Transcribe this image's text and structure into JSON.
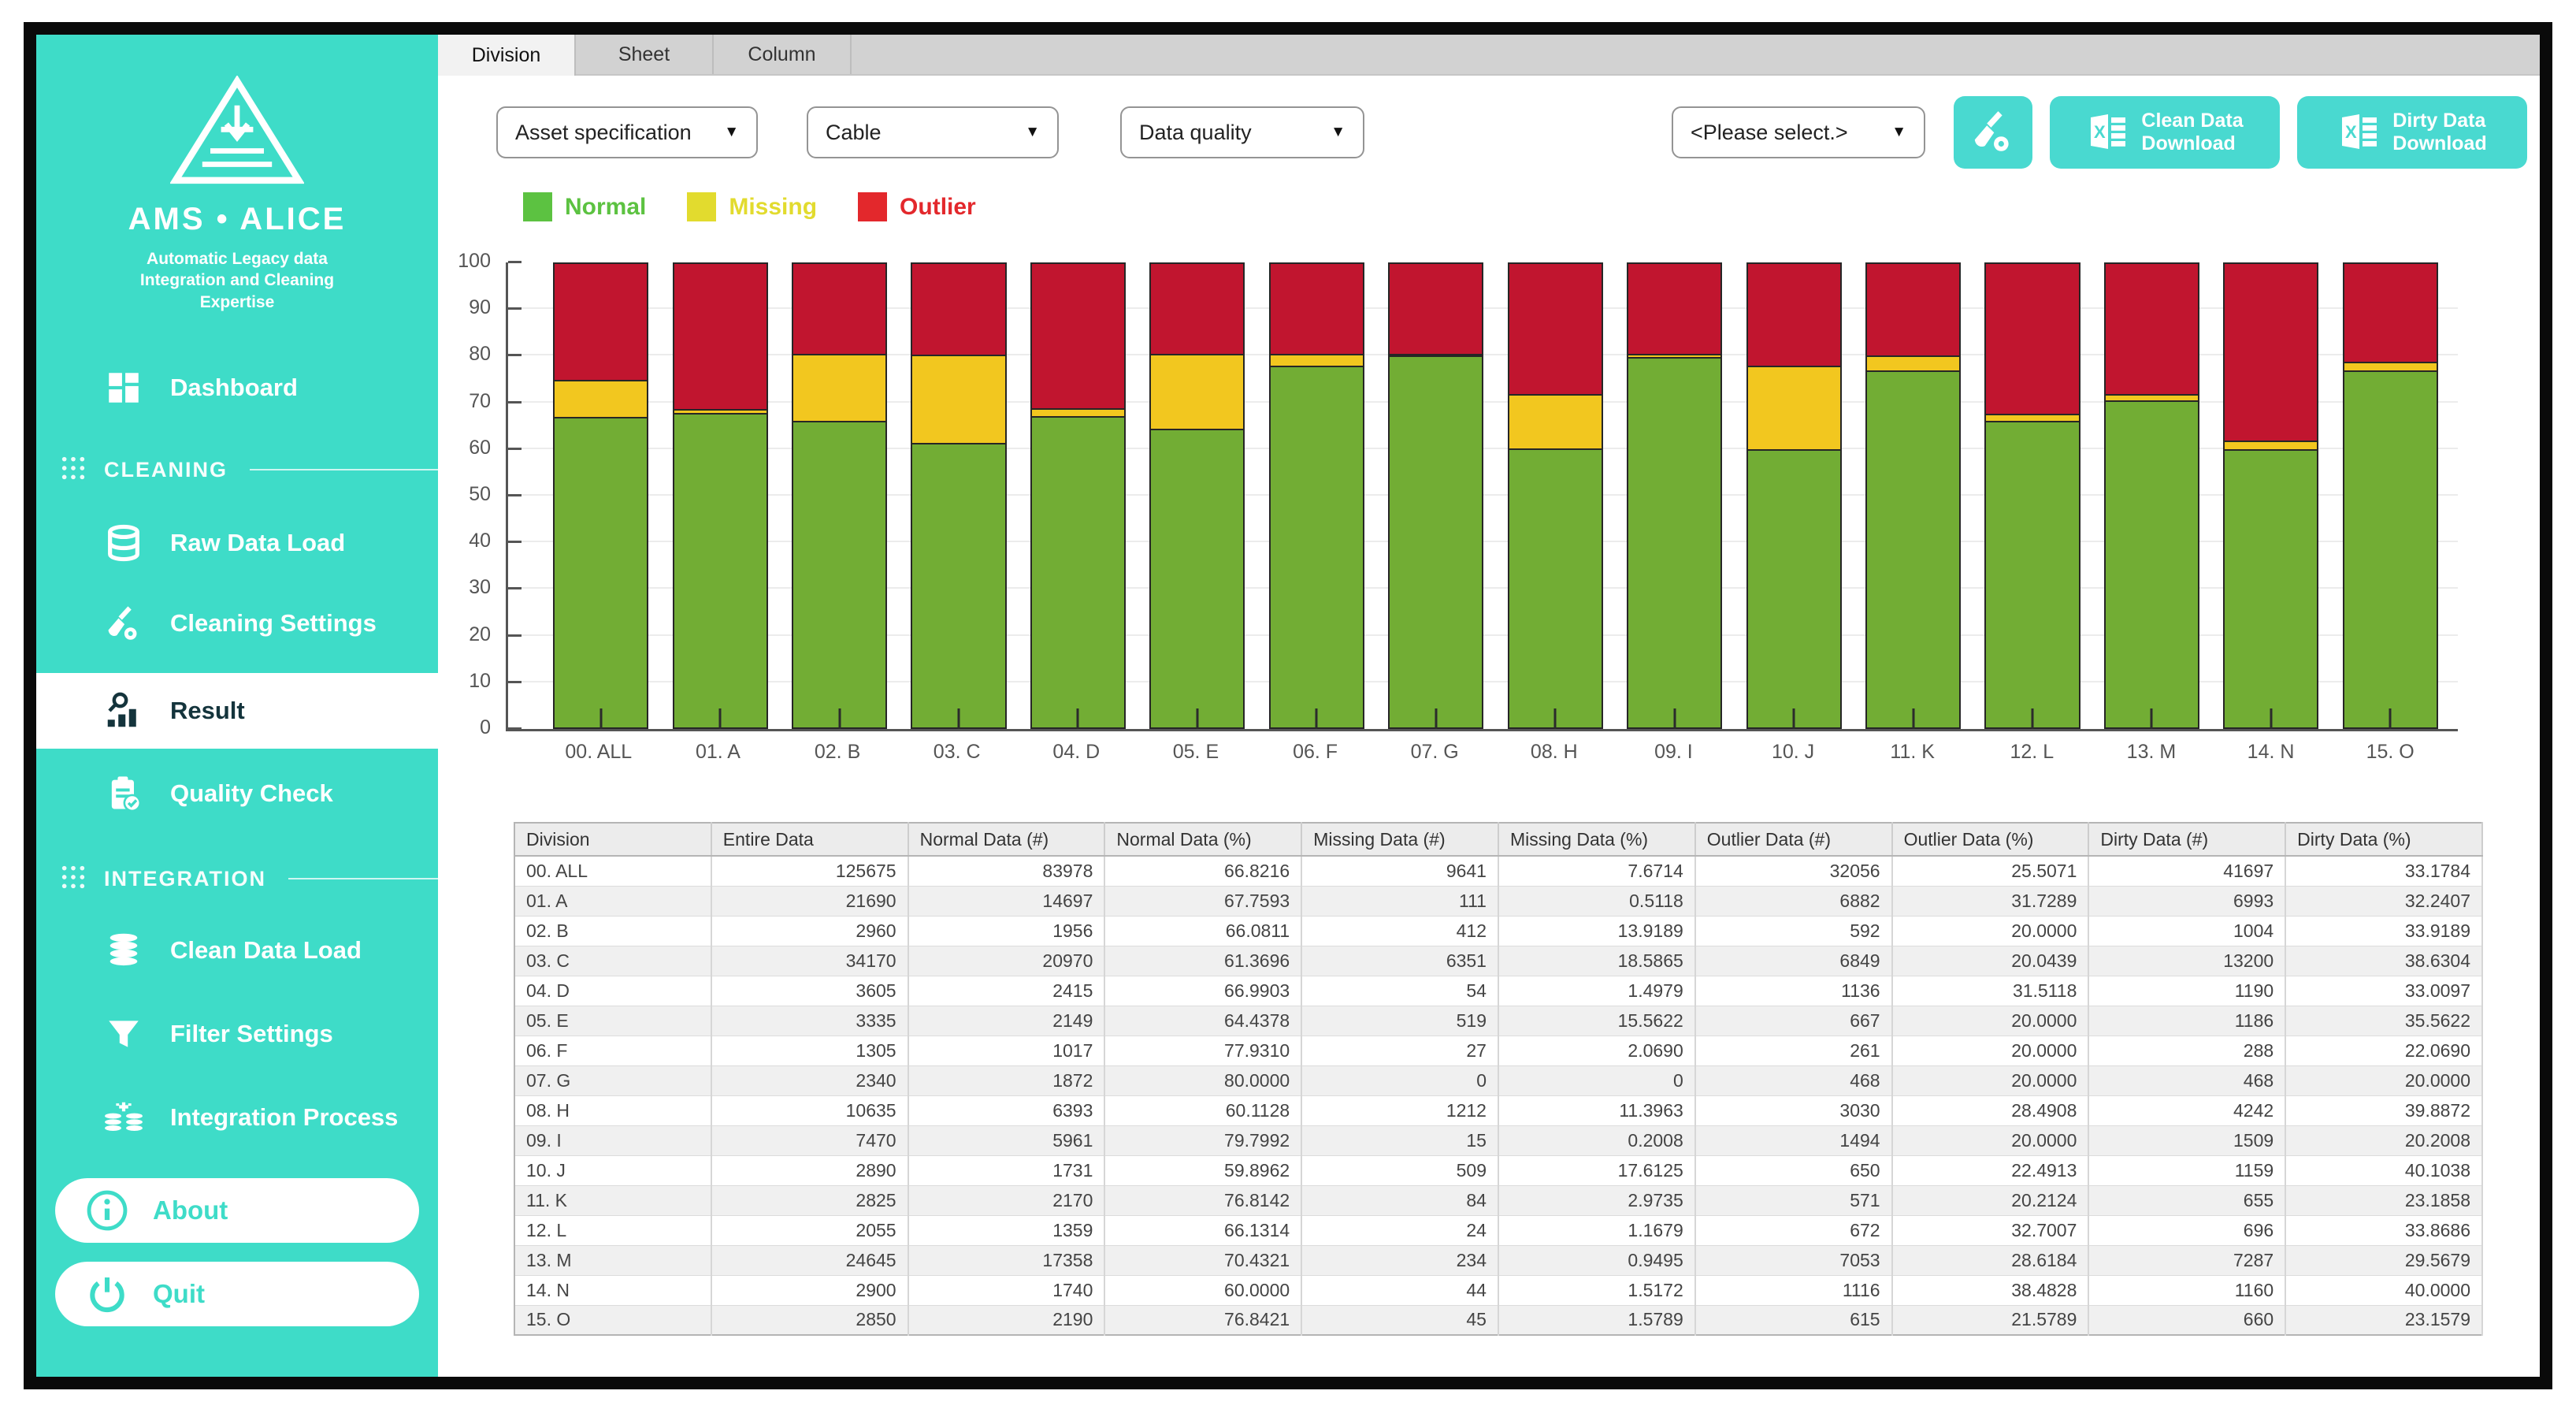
{
  "tabs": [
    {
      "label": "Division",
      "active": true
    },
    {
      "label": "Sheet",
      "active": false
    },
    {
      "label": "Column",
      "active": false
    }
  ],
  "sidebar": {
    "brand": {
      "title": "AMS • ALICE",
      "tagline1": "Automatic Legacy data",
      "tagline2": "Integration and Cleaning",
      "tagline3": "Expertise"
    },
    "items": {
      "dashboard": "Dashboard",
      "cleaning_section": "CLEANING",
      "raw_data_load": "Raw Data Load",
      "cleaning_settings": "Cleaning Settings",
      "result": "Result",
      "quality_check": "Quality Check",
      "integration_section": "INTEGRATION",
      "clean_data_load": "Clean Data Load",
      "filter_settings": "Filter Settings",
      "integration_process": "Integration Process",
      "about": "About",
      "quit": "Quit"
    }
  },
  "controls": {
    "dropdowns": [
      {
        "value": "Asset specification"
      },
      {
        "value": "Cable"
      },
      {
        "value": "Data quality"
      },
      {
        "value": "<Please select.>"
      }
    ],
    "clean_download": {
      "line1": "Clean Data",
      "line2": "Download"
    },
    "dirty_download": {
      "line1": "Dirty Data",
      "line2": "Download"
    }
  },
  "legend": {
    "items": [
      {
        "label": "Normal",
        "color": "#5CC241"
      },
      {
        "label": "Missing",
        "color": "#E2DB2E"
      },
      {
        "label": "Outlier",
        "color": "#E3282C"
      }
    ]
  },
  "colors": {
    "sidebar_teal": "#3EDCC8",
    "button_teal": "#49D9D0",
    "bar_normal": "#72AD34",
    "bar_missing": "#F2C71F",
    "bar_outlier": "#C1152F"
  },
  "chart_data": {
    "type": "bar",
    "stacked": true,
    "categories": [
      "00. ALL",
      "01. A",
      "02. B",
      "03. C",
      "04. D",
      "05. E",
      "06. F",
      "07. G",
      "08. H",
      "09. I",
      "10. J",
      "11. K",
      "12. L",
      "13. M",
      "14. N",
      "15. O"
    ],
    "series": [
      {
        "name": "Normal",
        "color": "#72AD34",
        "values": [
          66.8216,
          67.7593,
          66.0811,
          61.3696,
          66.9903,
          64.4378,
          77.931,
          80.0,
          60.1128,
          79.7992,
          59.8962,
          76.8142,
          66.1314,
          70.4321,
          60.0,
          76.8421
        ]
      },
      {
        "name": "Missing",
        "color": "#F2C71F",
        "values": [
          7.6714,
          0.5118,
          13.9189,
          18.5865,
          1.4979,
          15.5622,
          2.069,
          0,
          11.3963,
          0.2008,
          17.6125,
          2.9735,
          1.1679,
          0.9495,
          1.5172,
          1.5789
        ]
      },
      {
        "name": "Outlier",
        "color": "#C1152F",
        "values": [
          25.5071,
          31.7289,
          20.0,
          20.0439,
          31.5118,
          20.0,
          20.0,
          20.0,
          28.4908,
          20.0,
          22.4913,
          20.2124,
          32.7007,
          28.6184,
          38.4828,
          21.5789
        ]
      }
    ],
    "title": "",
    "xlabel": "",
    "ylabel": "",
    "ylim": [
      0,
      100
    ],
    "ytick_step": 10,
    "grid": true,
    "legend_position": "top-left"
  },
  "table": {
    "columns": [
      "Division",
      "Entire Data",
      "Normal Data (#)",
      "Normal Data (%)",
      "Missing Data (#)",
      "Missing Data (%)",
      "Outlier Data (#)",
      "Outlier Data (%)",
      "Dirty Data (#)",
      "Dirty Data (%)"
    ],
    "rows": [
      [
        "00. ALL",
        "125675",
        "83978",
        "66.8216",
        "9641",
        "7.6714",
        "32056",
        "25.5071",
        "41697",
        "33.1784"
      ],
      [
        "01. A",
        "21690",
        "14697",
        "67.7593",
        "111",
        "0.5118",
        "6882",
        "31.7289",
        "6993",
        "32.2407"
      ],
      [
        "02. B",
        "2960",
        "1956",
        "66.0811",
        "412",
        "13.9189",
        "592",
        "20.0000",
        "1004",
        "33.9189"
      ],
      [
        "03. C",
        "34170",
        "20970",
        "61.3696",
        "6351",
        "18.5865",
        "6849",
        "20.0439",
        "13200",
        "38.6304"
      ],
      [
        "04. D",
        "3605",
        "2415",
        "66.9903",
        "54",
        "1.4979",
        "1136",
        "31.5118",
        "1190",
        "33.0097"
      ],
      [
        "05. E",
        "3335",
        "2149",
        "64.4378",
        "519",
        "15.5622",
        "667",
        "20.0000",
        "1186",
        "35.5622"
      ],
      [
        "06. F",
        "1305",
        "1017",
        "77.9310",
        "27",
        "2.0690",
        "261",
        "20.0000",
        "288",
        "22.0690"
      ],
      [
        "07. G",
        "2340",
        "1872",
        "80.0000",
        "0",
        "0",
        "468",
        "20.0000",
        "468",
        "20.0000"
      ],
      [
        "08. H",
        "10635",
        "6393",
        "60.1128",
        "1212",
        "11.3963",
        "3030",
        "28.4908",
        "4242",
        "39.8872"
      ],
      [
        "09. I",
        "7470",
        "5961",
        "79.7992",
        "15",
        "0.2008",
        "1494",
        "20.0000",
        "1509",
        "20.2008"
      ],
      [
        "10. J",
        "2890",
        "1731",
        "59.8962",
        "509",
        "17.6125",
        "650",
        "22.4913",
        "1159",
        "40.1038"
      ],
      [
        "11. K",
        "2825",
        "2170",
        "76.8142",
        "84",
        "2.9735",
        "571",
        "20.2124",
        "655",
        "23.1858"
      ],
      [
        "12. L",
        "2055",
        "1359",
        "66.1314",
        "24",
        "1.1679",
        "672",
        "32.7007",
        "696",
        "33.8686"
      ],
      [
        "13. M",
        "24645",
        "17358",
        "70.4321",
        "234",
        "0.9495",
        "7053",
        "28.6184",
        "7287",
        "29.5679"
      ],
      [
        "14. N",
        "2900",
        "1740",
        "60.0000",
        "44",
        "1.5172",
        "1116",
        "38.4828",
        "1160",
        "40.0000"
      ],
      [
        "15. O",
        "2850",
        "2190",
        "76.8421",
        "45",
        "1.5789",
        "615",
        "21.5789",
        "660",
        "23.1579"
      ]
    ]
  }
}
